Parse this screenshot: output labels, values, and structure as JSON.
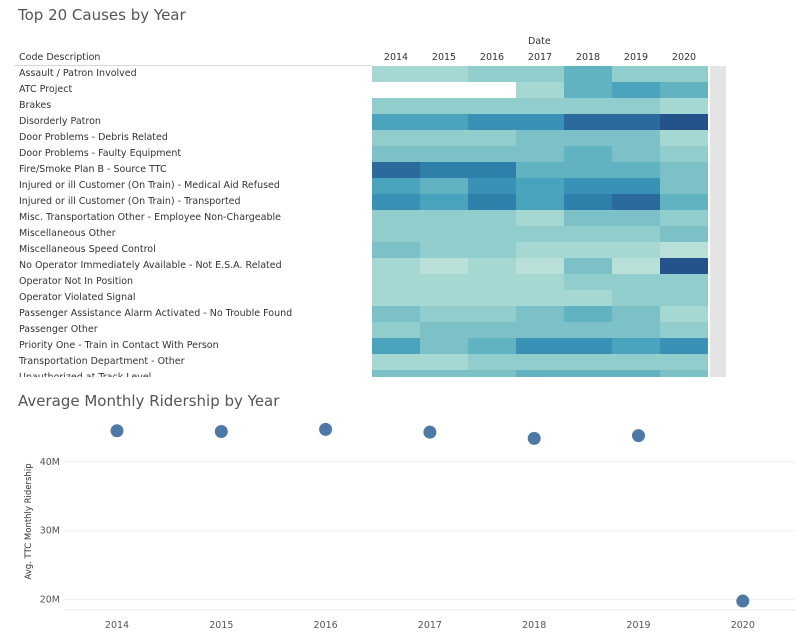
{
  "heatmap": {
    "title": "Top 20 Causes by Year",
    "row_header": "Code Description",
    "column_header": "Date",
    "columns": [
      "2014",
      "2015",
      "2016",
      "2017",
      "2018",
      "2019",
      "2020"
    ],
    "colors": {
      "scale": [
        "#b8e0d8",
        "#a6d8d3",
        "#91cdcc",
        "#7cc1c7",
        "#62b3c2",
        "#4aa3bd",
        "#3a91b6",
        "#2f7fab",
        "#2a6a9c",
        "#24528a"
      ],
      "empty": "#ffffff"
    },
    "chart_data": {
      "type": "heatmap",
      "value_scale": "relative intensity 0-9",
      "rows": [
        {
          "label": "Assault / Patron Involved",
          "values": [
            1,
            1,
            2,
            2,
            4,
            2,
            2
          ]
        },
        {
          "label": "ATC Project",
          "values": [
            null,
            null,
            null,
            1,
            4,
            5,
            4
          ]
        },
        {
          "label": "Brakes",
          "values": [
            2,
            2,
            2,
            2,
            2,
            2,
            1
          ]
        },
        {
          "label": "Disorderly Patron",
          "values": [
            5,
            5,
            6,
            6,
            8,
            8,
            9
          ]
        },
        {
          "label": "Door Problems - Debris Related",
          "values": [
            2,
            2,
            2,
            3,
            3,
            3,
            1
          ]
        },
        {
          "label": "Door Problems - Faulty Equipment",
          "values": [
            3,
            3,
            3,
            3,
            4,
            3,
            2
          ]
        },
        {
          "label": "Fire/Smoke Plan B - Source TTC",
          "values": [
            8,
            7,
            7,
            4,
            4,
            4,
            3
          ]
        },
        {
          "label": "Injured or ill Customer (On Train) - Medical Aid Refused",
          "values": [
            5,
            4,
            6,
            5,
            6,
            6,
            3
          ]
        },
        {
          "label": "Injured or ill Customer (On Train) - Transported",
          "values": [
            6,
            5,
            7,
            5,
            7,
            8,
            4
          ]
        },
        {
          "label": "Misc. Transportation Other - Employee Non-Chargeable",
          "values": [
            2,
            2,
            2,
            1,
            3,
            3,
            2
          ]
        },
        {
          "label": "Miscellaneous Other",
          "values": [
            2,
            2,
            2,
            2,
            2,
            2,
            3
          ]
        },
        {
          "label": "Miscellaneous Speed Control",
          "values": [
            3,
            2,
            2,
            1,
            1,
            1,
            0
          ]
        },
        {
          "label": "No Operator Immediately Available - Not E.S.A. Related",
          "values": [
            1,
            0,
            1,
            0,
            3,
            0,
            9
          ]
        },
        {
          "label": "Operator Not In Position",
          "values": [
            1,
            1,
            1,
            1,
            2,
            2,
            2
          ]
        },
        {
          "label": "Operator Violated Signal",
          "values": [
            1,
            1,
            1,
            1,
            1,
            2,
            2
          ]
        },
        {
          "label": "Passenger Assistance Alarm Activated - No Trouble Found",
          "values": [
            3,
            2,
            2,
            3,
            4,
            3,
            1
          ]
        },
        {
          "label": "Passenger Other",
          "values": [
            2,
            3,
            3,
            3,
            3,
            3,
            2
          ]
        },
        {
          "label": "Priority One - Train in Contact With Person",
          "values": [
            5,
            3,
            4,
            6,
            6,
            5,
            6
          ]
        },
        {
          "label": "Transportation Department - Other",
          "values": [
            1,
            1,
            2,
            2,
            2,
            2,
            2
          ]
        },
        {
          "label": "Unauthorized at Track Level",
          "values": [
            3,
            3,
            3,
            4,
            4,
            4,
            3
          ]
        }
      ]
    }
  },
  "ridership": {
    "title": "Average Monthly Ridership by Year",
    "dot_color": "#4e79a7",
    "chart_data": {
      "type": "scatter",
      "ylabel": "Avg. TTC Monthly Ridership",
      "xlabel": "",
      "x": [
        "2014",
        "2015",
        "2016",
        "2017",
        "2018",
        "2019",
        "2020"
      ],
      "y": [
        44500000,
        44400000,
        44700000,
        44300000,
        43400000,
        43800000,
        19800000
      ],
      "y_ticks": [
        {
          "value": 20000000,
          "label": "20M"
        },
        {
          "value": 30000000,
          "label": "30M"
        },
        {
          "value": 40000000,
          "label": "40M"
        }
      ],
      "ylim": [
        18500000,
        46500000
      ],
      "grid": true
    }
  }
}
